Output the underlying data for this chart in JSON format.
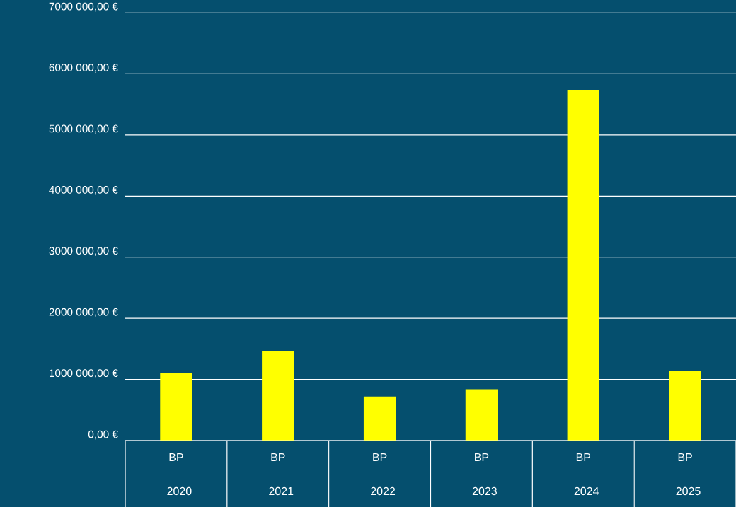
{
  "chart_data": {
    "type": "bar",
    "categories": [
      "BP 2020",
      "BP 2021",
      "BP 2022",
      "BP 2023",
      "BP 2024",
      "BP 2025"
    ],
    "values": [
      1100000,
      1460000,
      720000,
      840000,
      5740000,
      1140000
    ],
    "color": "#ffff00",
    "ylim": [
      0,
      7000000
    ],
    "yticks": [
      {
        "value": 0,
        "label": "0,00 €"
      },
      {
        "value": 1000000,
        "label": "1000 000,00 €"
      },
      {
        "value": 2000000,
        "label": "2000 000,00 €"
      },
      {
        "value": 3000000,
        "label": "3000 000,00 €"
      },
      {
        "value": 4000000,
        "label": "4000 000,00 €"
      },
      {
        "value": 5000000,
        "label": "5000 000,00 €"
      },
      {
        "value": 6000000,
        "label": "6000 000,00 €"
      },
      {
        "value": 7000000,
        "label": "7000 000,00 €"
      }
    ],
    "grid": "y"
  }
}
